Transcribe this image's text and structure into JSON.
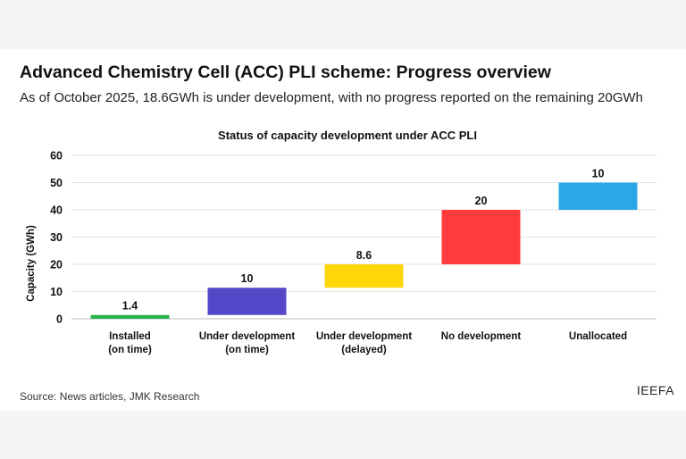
{
  "header": {
    "title": "Advanced Chemistry Cell (ACC) PLI scheme: Progress overview",
    "subtitle": "As of October 2025, 18.6GWh is under development, with no progress reported on the remaining 20GWh"
  },
  "footer": {
    "source": "Source: News articles, JMK Research",
    "brand": "IEEFA"
  },
  "chart_data": {
    "type": "bar",
    "subtype": "waterfall",
    "title": "Status of capacity development under ACC PLI",
    "xlabel": "",
    "ylabel": "Capacity (GWh)",
    "ylim": [
      0,
      60
    ],
    "yticks": [
      0,
      10,
      20,
      30,
      40,
      50,
      60
    ],
    "grid": true,
    "legend": "none",
    "categories": [
      [
        "Installed",
        "(on time)"
      ],
      [
        "Under development",
        "(on time)"
      ],
      [
        "Under development",
        "(delayed)"
      ],
      [
        "No development"
      ],
      [
        "Unallocated"
      ]
    ],
    "values": [
      1.4,
      10,
      8.6,
      20,
      10
    ],
    "labels": [
      "1.4",
      "10",
      "8.6",
      "20",
      "10"
    ],
    "colors": [
      "#2bb24c",
      "#5548c8",
      "#ffd60a",
      "#ff3b3b",
      "#2aa8e6"
    ]
  }
}
